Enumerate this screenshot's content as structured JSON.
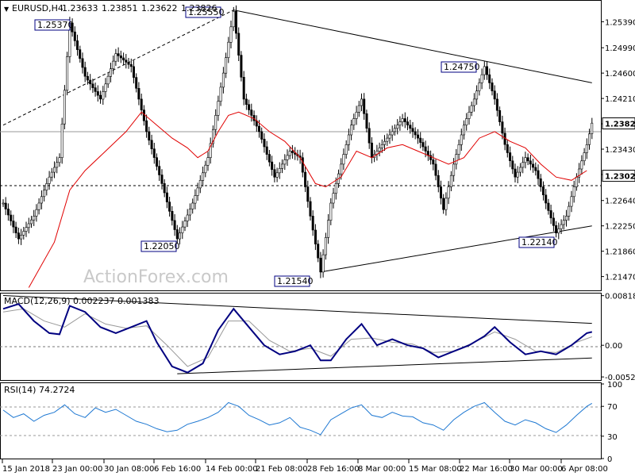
{
  "chart_data": [
    {
      "type": "candlestick",
      "symbol": "EURUSD,H4",
      "header_values": [
        "1.23633",
        "1.23851",
        "1.23622",
        "1.23826"
      ],
      "watermark": "ActionForex.com",
      "ylim": [
        1.2127,
        1.257
      ],
      "y_ticks": [
        "1.25390",
        "1.24990",
        "1.24600",
        "1.24210",
        "1.23820",
        "1.23430",
        "1.23040",
        "1.22640",
        "1.22250",
        "1.21860",
        "1.21470"
      ],
      "x_ticks": [
        "15 Jan 2018",
        "23 Jan 00:00",
        "30 Jan 08:00",
        "6 Feb 16:00",
        "14 Feb 00:00",
        "21 Feb 08:00",
        "28 Feb 16:00",
        "8 Mar 00:00",
        "15 Mar 08:00",
        "22 Mar 16:00",
        "30 Mar 00:00",
        "6 Apr 08:00"
      ],
      "current_price": "1.23826",
      "horizontal_level": "1.23020",
      "annotations": [
        "1.25370",
        "1.25550",
        "1.22050",
        "1.21540",
        "1.24750",
        "1.22140"
      ],
      "close_path": [
        [
          0,
          1.226
        ],
        [
          3,
          1.2205
        ],
        [
          6,
          1.224
        ],
        [
          9,
          1.23
        ],
        [
          11,
          1.233
        ],
        [
          13,
          1.2537
        ],
        [
          16,
          1.2455
        ],
        [
          19,
          1.242
        ],
        [
          22,
          1.249
        ],
        [
          25,
          1.247
        ],
        [
          28,
          1.237
        ],
        [
          31,
          1.229
        ],
        [
          34,
          1.2205
        ],
        [
          37,
          1.226
        ],
        [
          40,
          1.233
        ],
        [
          43,
          1.246
        ],
        [
          45,
          1.2555
        ],
        [
          47,
          1.242
        ],
        [
          50,
          1.237
        ],
        [
          53,
          1.23
        ],
        [
          56,
          1.234
        ],
        [
          58,
          1.233
        ],
        [
          60,
          1.224
        ],
        [
          62,
          1.2154
        ],
        [
          64,
          1.226
        ],
        [
          66,
          1.232
        ],
        [
          68,
          1.238
        ],
        [
          70,
          1.242
        ],
        [
          72,
          1.233
        ],
        [
          75,
          1.236
        ],
        [
          78,
          1.239
        ],
        [
          81,
          1.236
        ],
        [
          84,
          1.232
        ],
        [
          86,
          1.225
        ],
        [
          88,
          1.232
        ],
        [
          90,
          1.238
        ],
        [
          92,
          1.242
        ],
        [
          94,
          1.247
        ],
        [
          96,
          1.242
        ],
        [
          98,
          1.235
        ],
        [
          100,
          1.23
        ],
        [
          102,
          1.233
        ],
        [
          104,
          1.231
        ],
        [
          106,
          1.226
        ],
        [
          108,
          1.2214
        ],
        [
          110,
          1.224
        ],
        [
          112,
          1.23
        ],
        [
          114,
          1.235
        ],
        [
          115,
          1.2383
        ]
      ],
      "ma_path": [
        [
          5,
          1.213
        ],
        [
          10,
          1.22
        ],
        [
          13,
          1.228
        ],
        [
          16,
          1.231
        ],
        [
          20,
          1.234
        ],
        [
          24,
          1.237
        ],
        [
          27,
          1.24
        ],
        [
          30,
          1.238
        ],
        [
          33,
          1.236
        ],
        [
          36,
          1.2345
        ],
        [
          38,
          1.233
        ],
        [
          40,
          1.234
        ],
        [
          42,
          1.237
        ],
        [
          44,
          1.2395
        ],
        [
          46,
          1.24
        ],
        [
          49,
          1.239
        ],
        [
          52,
          1.237
        ],
        [
          55,
          1.2355
        ],
        [
          58,
          1.233
        ],
        [
          61,
          1.229
        ],
        [
          63,
          1.2285
        ],
        [
          66,
          1.23
        ],
        [
          69,
          1.234
        ],
        [
          72,
          1.233
        ],
        [
          75,
          1.2345
        ],
        [
          78,
          1.235
        ],
        [
          81,
          1.234
        ],
        [
          84,
          1.233
        ],
        [
          87,
          1.232
        ],
        [
          90,
          1.233
        ],
        [
          93,
          1.236
        ],
        [
          96,
          1.237
        ],
        [
          99,
          1.2355
        ],
        [
          102,
          1.2345
        ],
        [
          105,
          1.232
        ],
        [
          108,
          1.23
        ],
        [
          111,
          1.2295
        ],
        [
          114,
          1.231
        ]
      ],
      "trendlines": [
        {
          "from": [
            0,
            1.238
          ],
          "to": [
            45,
            1.2557
          ]
        },
        {
          "from": [
            45,
            1.2557
          ],
          "to": [
            115,
            1.2445
          ]
        },
        {
          "from": [
            62,
            1.2154
          ],
          "to": [
            115,
            1.2225
          ]
        }
      ]
    },
    {
      "type": "line",
      "title": "MACD(12,26,9) 0.002237 0.001383",
      "ylim": [
        -0.0056,
        0.0084
      ],
      "y_ticks": [
        "0.008182",
        "0.00",
        "-0.005223"
      ],
      "main_path": [
        [
          0,
          0.006
        ],
        [
          3,
          0.0068
        ],
        [
          6,
          0.004
        ],
        [
          9,
          0.002
        ],
        [
          11,
          0.0018
        ],
        [
          13,
          0.0065
        ],
        [
          16,
          0.0055
        ],
        [
          19,
          0.003
        ],
        [
          22,
          0.002
        ],
        [
          25,
          0.003
        ],
        [
          28,
          0.004
        ],
        [
          30,
          0.0005
        ],
        [
          33,
          -0.0035
        ],
        [
          36,
          -0.0045
        ],
        [
          39,
          -0.003
        ],
        [
          42,
          0.0025
        ],
        [
          45,
          0.006
        ],
        [
          48,
          0.003
        ],
        [
          51,
          0.0
        ],
        [
          54,
          -0.0015
        ],
        [
          57,
          -0.001
        ],
        [
          60,
          0.0
        ],
        [
          62,
          -0.0025
        ],
        [
          64,
          -0.0025
        ],
        [
          67,
          0.001
        ],
        [
          70,
          0.0035
        ],
        [
          73,
          0.0
        ],
        [
          76,
          0.001
        ],
        [
          79,
          0.0
        ],
        [
          82,
          -0.0005
        ],
        [
          85,
          -0.002
        ],
        [
          88,
          -0.001
        ],
        [
          91,
          0.0
        ],
        [
          94,
          0.0015
        ],
        [
          96,
          0.003
        ],
        [
          99,
          0.0005
        ],
        [
          102,
          -0.0015
        ],
        [
          105,
          -0.001
        ],
        [
          108,
          -0.0015
        ],
        [
          111,
          0.0
        ],
        [
          114,
          0.002
        ],
        [
          115,
          0.0022
        ]
      ],
      "signal_path": [
        [
          0,
          0.0055
        ],
        [
          4,
          0.006
        ],
        [
          8,
          0.004
        ],
        [
          12,
          0.003
        ],
        [
          16,
          0.0052
        ],
        [
          20,
          0.0035
        ],
        [
          24,
          0.0028
        ],
        [
          28,
          0.0032
        ],
        [
          32,
          0.0
        ],
        [
          36,
          -0.0035
        ],
        [
          40,
          -0.002
        ],
        [
          44,
          0.004
        ],
        [
          48,
          0.004
        ],
        [
          52,
          0.0008
        ],
        [
          56,
          -0.001
        ],
        [
          60,
          -0.0005
        ],
        [
          64,
          -0.0018
        ],
        [
          68,
          0.001
        ],
        [
          72,
          0.0012
        ],
        [
          76,
          0.0005
        ],
        [
          80,
          0.0002
        ],
        [
          84,
          -0.0012
        ],
        [
          88,
          -0.001
        ],
        [
          92,
          0.0005
        ],
        [
          96,
          0.0022
        ],
        [
          100,
          0.001
        ],
        [
          104,
          -0.001
        ],
        [
          108,
          -0.0012
        ],
        [
          112,
          0.0005
        ],
        [
          115,
          0.0014
        ]
      ],
      "trendlines": [
        {
          "from": [
            0,
            0.0082
          ],
          "to": [
            115,
            0.0036
          ]
        },
        {
          "from": [
            34,
            -0.0047
          ],
          "to": [
            115,
            -0.0021
          ]
        }
      ]
    },
    {
      "type": "line",
      "title": "RSI(14) 74.2724",
      "ylim": [
        0,
        100
      ],
      "y_ticks": [
        "100",
        "70",
        "30",
        "0"
      ],
      "path": [
        [
          0,
          65
        ],
        [
          2,
          55
        ],
        [
          4,
          60
        ],
        [
          6,
          50
        ],
        [
          8,
          58
        ],
        [
          10,
          62
        ],
        [
          12,
          72
        ],
        [
          14,
          60
        ],
        [
          16,
          55
        ],
        [
          18,
          68
        ],
        [
          20,
          62
        ],
        [
          22,
          66
        ],
        [
          24,
          58
        ],
        [
          26,
          50
        ],
        [
          28,
          46
        ],
        [
          30,
          40
        ],
        [
          32,
          36
        ],
        [
          34,
          38
        ],
        [
          36,
          46
        ],
        [
          38,
          50
        ],
        [
          40,
          55
        ],
        [
          42,
          62
        ],
        [
          44,
          75
        ],
        [
          46,
          70
        ],
        [
          48,
          58
        ],
        [
          50,
          52
        ],
        [
          52,
          45
        ],
        [
          54,
          48
        ],
        [
          56,
          55
        ],
        [
          58,
          42
        ],
        [
          60,
          38
        ],
        [
          62,
          32
        ],
        [
          64,
          52
        ],
        [
          66,
          60
        ],
        [
          68,
          68
        ],
        [
          70,
          72
        ],
        [
          72,
          58
        ],
        [
          74,
          55
        ],
        [
          76,
          62
        ],
        [
          78,
          57
        ],
        [
          80,
          56
        ],
        [
          82,
          48
        ],
        [
          84,
          45
        ],
        [
          86,
          38
        ],
        [
          88,
          52
        ],
        [
          90,
          62
        ],
        [
          92,
          70
        ],
        [
          94,
          75
        ],
        [
          96,
          62
        ],
        [
          98,
          50
        ],
        [
          100,
          45
        ],
        [
          102,
          52
        ],
        [
          104,
          48
        ],
        [
          106,
          40
        ],
        [
          108,
          35
        ],
        [
          110,
          45
        ],
        [
          112,
          58
        ],
        [
          114,
          70
        ],
        [
          115,
          74
        ]
      ]
    }
  ]
}
